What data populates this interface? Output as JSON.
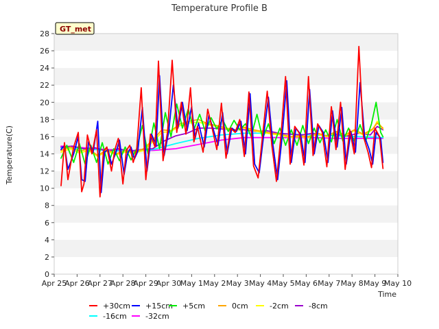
{
  "chart_data": {
    "type": "line",
    "title": "Temperature Profile B",
    "xlabel": "Time",
    "ylabel": "Temperature(C)",
    "badge": "GT_met",
    "xlim": [
      0,
      15
    ],
    "ylim": [
      0,
      28
    ],
    "x_ticks": [
      {
        "x": 0,
        "label": "Apr 25"
      },
      {
        "x": 1,
        "label": "Apr 26"
      },
      {
        "x": 2,
        "label": "Apr 27"
      },
      {
        "x": 3,
        "label": "Apr 28"
      },
      {
        "x": 4,
        "label": "Apr 29"
      },
      {
        "x": 5,
        "label": "Apr 30"
      },
      {
        "x": 6,
        "label": "May 1"
      },
      {
        "x": 7,
        "label": "May 2"
      },
      {
        "x": 8,
        "label": "May 3"
      },
      {
        "x": 9,
        "label": "May 4"
      },
      {
        "x": 10,
        "label": "May 5"
      },
      {
        "x": 11,
        "label": "May 6"
      },
      {
        "x": 12,
        "label": "May 7"
      },
      {
        "x": 13,
        "label": "May 8"
      },
      {
        "x": 14,
        "label": "May 9"
      },
      {
        "x": 15,
        "label": "May 10"
      }
    ],
    "y_ticks": [
      0,
      2,
      4,
      6,
      8,
      10,
      12,
      14,
      16,
      18,
      20,
      22,
      24,
      26,
      28
    ],
    "grid": true,
    "band_colors": [
      "#f2f2f2",
      "#ffffff"
    ],
    "legend_position": "bottom",
    "series": [
      {
        "name": "+30cm",
        "color": "#ff0000",
        "x": [
          0.3,
          0.45,
          0.6,
          0.85,
          1.05,
          1.2,
          1.3,
          1.45,
          1.65,
          1.85,
          2.0,
          2.15,
          2.3,
          2.5,
          2.65,
          2.8,
          3.0,
          3.15,
          3.3,
          3.45,
          3.6,
          3.8,
          4.0,
          4.2,
          4.4,
          4.55,
          4.75,
          4.95,
          5.15,
          5.35,
          5.55,
          5.75,
          5.95,
          6.1,
          6.25,
          6.5,
          6.7,
          6.9,
          7.1,
          7.3,
          7.5,
          7.7,
          7.9,
          8.1,
          8.3,
          8.5,
          8.7,
          8.9,
          9.1,
          9.3,
          9.5,
          9.7,
          9.9,
          10.1,
          10.3,
          10.5,
          10.7,
          10.9,
          11.1,
          11.3,
          11.5,
          11.7,
          11.9,
          12.1,
          12.3,
          12.5,
          12.7,
          12.9,
          13.1,
          13.3,
          13.5,
          13.7,
          13.85,
          14.0,
          14.2,
          14.35
        ],
        "y": [
          10.3,
          15.3,
          11.0,
          14.8,
          16.5,
          9.6,
          10.5,
          16.2,
          14.0,
          16.8,
          9.0,
          14.3,
          14.8,
          12.0,
          14.5,
          15.8,
          10.5,
          14.4,
          15.0,
          13.0,
          14.4,
          21.7,
          11.0,
          16.3,
          14.8,
          24.8,
          13.2,
          16.6,
          24.9,
          16.5,
          20.0,
          16.3,
          21.7,
          15.4,
          17.2,
          14.2,
          19.2,
          16.9,
          14.5,
          19.9,
          13.5,
          17.0,
          16.5,
          18.0,
          13.7,
          21.2,
          12.6,
          11.2,
          16.2,
          21.3,
          15.0,
          10.8,
          16.2,
          23.0,
          12.8,
          17.2,
          16.4,
          12.7,
          23.0,
          13.8,
          17.5,
          16.5,
          12.5,
          19.5,
          14.5,
          20.0,
          12.2,
          16.8,
          14.0,
          26.5,
          16.0,
          14.2,
          12.4,
          17.0,
          16.0,
          12.3
        ]
      },
      {
        "name": "+15cm",
        "color": "#0000ff",
        "x": [
          0.3,
          0.45,
          0.6,
          0.85,
          1.05,
          1.2,
          1.35,
          1.5,
          1.7,
          1.9,
          2.05,
          2.2,
          2.35,
          2.5,
          2.7,
          2.85,
          3.05,
          3.2,
          3.35,
          3.5,
          3.65,
          3.85,
          4.05,
          4.25,
          4.45,
          4.6,
          4.8,
          5.0,
          5.2,
          5.4,
          5.6,
          5.8,
          6.0,
          6.15,
          6.3,
          6.55,
          6.75,
          6.95,
          7.15,
          7.35,
          7.55,
          7.75,
          7.95,
          8.15,
          8.35,
          8.55,
          8.75,
          8.95,
          9.15,
          9.35,
          9.55,
          9.75,
          9.95,
          10.15,
          10.35,
          10.55,
          10.75,
          10.95,
          11.15,
          11.35,
          11.55,
          11.75,
          11.95,
          12.15,
          12.35,
          12.55,
          12.75,
          12.95,
          13.15,
          13.35,
          13.55,
          13.75,
          13.9,
          14.05,
          14.25,
          14.35
        ],
        "y": [
          14.5,
          15.0,
          12.2,
          14.0,
          16.0,
          11.0,
          10.8,
          15.4,
          14.2,
          17.8,
          9.5,
          14.2,
          14.5,
          12.8,
          14.2,
          15.6,
          11.6,
          14.0,
          14.8,
          13.4,
          14.3,
          19.4,
          12.0,
          16.3,
          15.0,
          23.1,
          13.8,
          16.6,
          22.0,
          17.0,
          20.0,
          16.7,
          19.5,
          15.8,
          17.6,
          14.8,
          18.5,
          16.8,
          15.0,
          18.8,
          14.0,
          17.0,
          16.6,
          17.8,
          14.0,
          21.0,
          12.8,
          11.8,
          16.3,
          20.6,
          15.0,
          11.0,
          16.0,
          22.5,
          13.0,
          17.0,
          16.3,
          13.0,
          21.5,
          14.0,
          17.3,
          16.5,
          13.0,
          19.0,
          14.8,
          19.4,
          12.8,
          16.6,
          14.2,
          22.3,
          16.0,
          14.5,
          12.8,
          16.5,
          15.8,
          13.0
        ]
      },
      {
        "name": "+5cm",
        "color": "#00ee00",
        "x": [
          0.3,
          0.55,
          0.85,
          1.1,
          1.35,
          1.6,
          1.85,
          2.1,
          2.35,
          2.6,
          2.85,
          3.1,
          3.35,
          3.6,
          3.85,
          4.1,
          4.35,
          4.6,
          4.85,
          5.1,
          5.35,
          5.6,
          5.85,
          6.1,
          6.35,
          6.6,
          6.85,
          7.1,
          7.35,
          7.6,
          7.85,
          8.1,
          8.35,
          8.6,
          8.85,
          9.1,
          9.35,
          9.6,
          9.85,
          10.1,
          10.35,
          10.6,
          10.85,
          11.1,
          11.35,
          11.6,
          11.85,
          12.1,
          12.35,
          12.6,
          12.85,
          13.1,
          13.35,
          13.6,
          13.85,
          14.05,
          14.25,
          14.35
        ],
        "y": [
          13.5,
          15.0,
          13.0,
          15.2,
          12.8,
          15.0,
          13.0,
          15.3,
          12.8,
          14.6,
          13.2,
          14.8,
          13.3,
          14.6,
          17.3,
          14.0,
          17.6,
          14.6,
          18.8,
          16.0,
          19.8,
          17.0,
          19.2,
          16.8,
          18.6,
          16.6,
          18.2,
          16.9,
          18.0,
          16.6,
          17.9,
          16.8,
          17.5,
          16.0,
          18.6,
          15.8,
          17.5,
          15.2,
          17.0,
          15.0,
          16.8,
          15.0,
          17.3,
          15.2,
          17.0,
          15.3,
          16.8,
          15.4,
          18.0,
          15.5,
          17.0,
          15.5,
          17.4,
          15.5,
          17.5,
          20.0,
          16.5,
          16.0
        ]
      },
      {
        "name": "0cm",
        "color": "#ffa500",
        "x": [
          0.3,
          0.7,
          1.1,
          1.5,
          1.9,
          2.3,
          2.7,
          3.1,
          3.5,
          3.9,
          4.3,
          4.7,
          5.1,
          5.5,
          5.9,
          6.3,
          6.7,
          7.1,
          7.5,
          7.9,
          8.3,
          8.7,
          9.1,
          9.5,
          9.9,
          10.3,
          10.7,
          11.1,
          11.5,
          11.9,
          12.3,
          12.7,
          13.1,
          13.5,
          13.9,
          14.1,
          14.35
        ],
        "y": [
          14.4,
          14.8,
          14.3,
          14.6,
          13.8,
          14.5,
          14.0,
          14.4,
          14.2,
          14.6,
          15.6,
          16.8,
          16.7,
          17.5,
          17.8,
          18.0,
          17.5,
          17.3,
          17.0,
          16.8,
          17.1,
          16.8,
          16.6,
          16.4,
          16.3,
          16.0,
          16.1,
          16.0,
          16.4,
          16.1,
          16.6,
          16.2,
          16.8,
          16.3,
          16.9,
          17.6,
          17.0
        ]
      },
      {
        "name": "-2cm",
        "color": "#ffff00",
        "x": [
          0.3,
          0.7,
          1.1,
          1.5,
          1.9,
          2.3,
          2.7,
          3.1,
          3.5,
          3.9,
          4.3,
          4.7,
          5.1,
          5.5,
          5.9,
          6.3,
          6.7,
          7.1,
          7.5,
          7.9,
          8.3,
          8.7,
          9.1,
          9.5,
          9.9,
          10.3,
          10.7,
          11.1,
          11.5,
          11.9,
          12.3,
          12.7,
          13.1,
          13.5,
          13.9,
          14.1,
          14.35
        ],
        "y": [
          14.2,
          14.6,
          14.1,
          14.4,
          13.7,
          14.3,
          13.9,
          14.2,
          14.1,
          14.4,
          15.4,
          16.5,
          16.6,
          17.3,
          17.6,
          17.7,
          17.4,
          17.2,
          16.9,
          16.7,
          17.0,
          16.7,
          16.5,
          16.3,
          16.2,
          15.9,
          16.0,
          15.9,
          16.3,
          16.0,
          16.5,
          16.1,
          16.7,
          16.2,
          16.8,
          17.8,
          16.9
        ]
      },
      {
        "name": "-8cm",
        "color": "#9900cc",
        "x": [
          0.3,
          0.8,
          1.3,
          1.8,
          2.3,
          2.8,
          3.3,
          3.8,
          4.3,
          4.8,
          5.3,
          5.8,
          6.3,
          6.8,
          7.3,
          7.8,
          8.3,
          8.8,
          9.3,
          9.8,
          10.3,
          10.8,
          11.3,
          11.8,
          12.3,
          12.8,
          13.3,
          13.8,
          14.1,
          14.35
        ],
        "y": [
          14.8,
          14.9,
          14.6,
          14.7,
          14.3,
          14.6,
          14.3,
          14.5,
          14.6,
          15.5,
          16.1,
          16.4,
          17.0,
          17.0,
          16.9,
          16.8,
          16.8,
          16.6,
          16.7,
          16.4,
          16.3,
          16.2,
          16.4,
          16.1,
          16.3,
          16.1,
          16.4,
          16.2,
          17.2,
          16.8
        ]
      },
      {
        "name": "-16cm",
        "color": "#00ffff",
        "x": [
          0.3,
          1.3,
          2.3,
          3.3,
          4.3,
          5.3,
          6.3,
          7.3,
          8.3,
          9.3,
          10.3,
          11.3,
          12.3,
          13.3,
          14.35
        ],
        "y": [
          14.7,
          14.6,
          14.4,
          14.3,
          14.5,
          15.2,
          15.8,
          16.2,
          16.4,
          16.4,
          16.3,
          16.2,
          16.1,
          16.0,
          15.9
        ]
      },
      {
        "name": "-32cm",
        "color": "#ff00ff",
        "x": [
          0.3,
          1.3,
          2.3,
          3.3,
          4.3,
          5.3,
          6.3,
          7.3,
          8.3,
          9.3,
          10.3,
          11.3,
          12.3,
          13.3,
          14.35
        ],
        "y": [
          14.9,
          14.7,
          14.5,
          14.4,
          14.4,
          14.6,
          15.1,
          15.6,
          15.9,
          15.9,
          15.9,
          15.9,
          15.8,
          15.8,
          15.8
        ]
      }
    ]
  }
}
